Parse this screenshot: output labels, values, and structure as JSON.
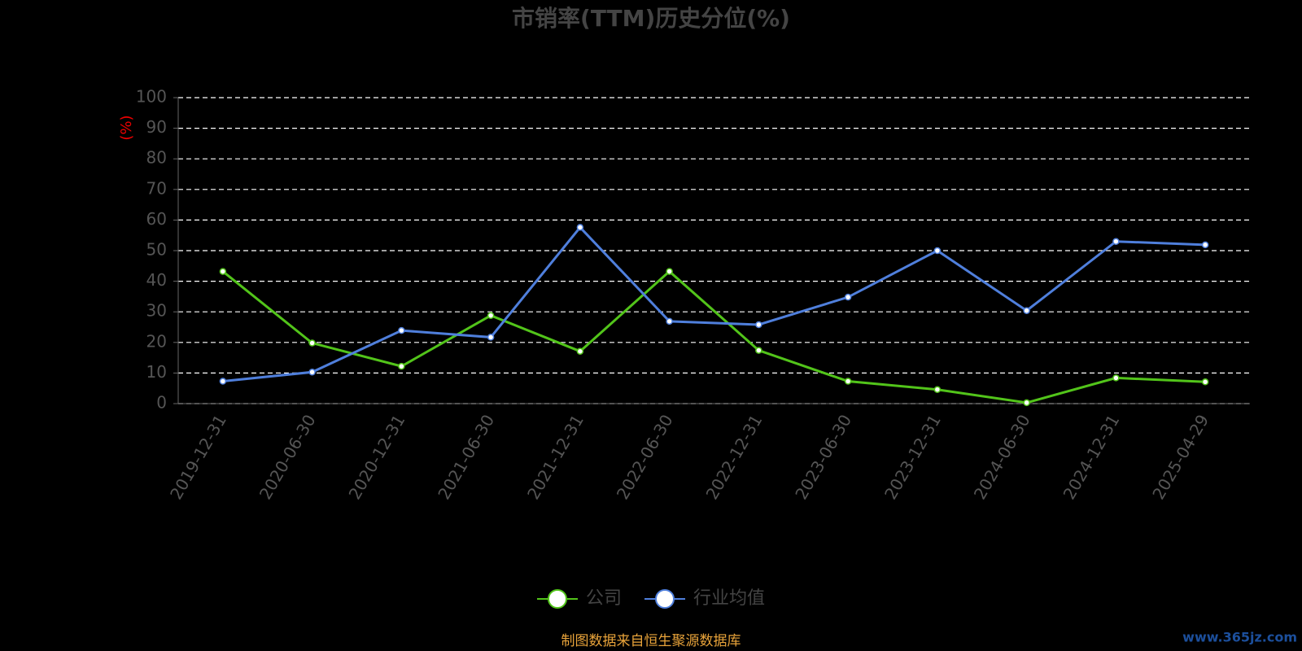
{
  "chart_data": {
    "type": "line",
    "title": "市销率(TTM)历史分位(%)",
    "y_label": "(%)",
    "categories": [
      "2019-12-31",
      "2020-06-30",
      "2020-12-31",
      "2021-06-30",
      "2021-12-31",
      "2022-06-30",
      "2022-12-31",
      "2023-06-30",
      "2023-12-31",
      "2024-06-30",
      "2024-12-31",
      "2025-04-29"
    ],
    "series": [
      {
        "name": "公司",
        "color": "#52c41a",
        "values": [
          43.2,
          19.8,
          12.2,
          28.8,
          17.1,
          43.2,
          17.4,
          7.3,
          4.6,
          0.3,
          8.4,
          7.1
        ]
      },
      {
        "name": "行业均值",
        "color": "#4f7fdc",
        "values": [
          7.3,
          10.3,
          23.9,
          21.7,
          57.6,
          26.9,
          25.8,
          34.8,
          50.0,
          30.4,
          53.0,
          51.9
        ]
      }
    ],
    "ylim": [
      0,
      100
    ],
    "yticks": [
      0,
      10,
      20,
      30,
      40,
      50,
      60,
      70,
      80,
      90,
      100
    ],
    "grid": true,
    "legend": "bottom",
    "source": "制图数据来自恒生聚源数据库",
    "watermark": "www.365jz.com"
  }
}
